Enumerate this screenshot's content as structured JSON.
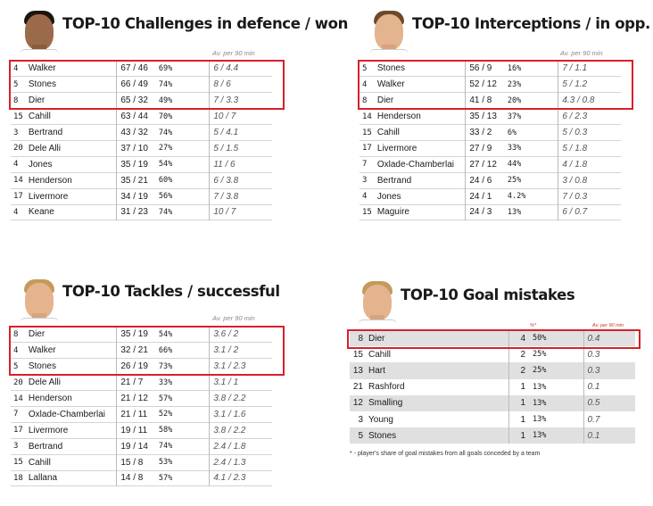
{
  "defence": {
    "title": "TOP-10 Challenges in defence / won",
    "subheader": "Av. per 90 min",
    "rows": [
      {
        "num": "4",
        "name": "Walker",
        "won": "67 / 46",
        "pct": "69%",
        "avg": "6 / 4.4"
      },
      {
        "num": "5",
        "name": "Stones",
        "won": "66 / 49",
        "pct": "74%",
        "avg": "8 / 6"
      },
      {
        "num": "8",
        "name": "Dier",
        "won": "65 / 32",
        "pct": "49%",
        "avg": "7 / 3.3"
      },
      {
        "num": "15",
        "name": "Cahill",
        "won": "63 / 44",
        "pct": "70%",
        "avg": "10 / 7"
      },
      {
        "num": "3",
        "name": "Bertrand",
        "won": "43 / 32",
        "pct": "74%",
        "avg": "5 / 4.1"
      },
      {
        "num": "20",
        "name": "Dele Alli",
        "won": "37 / 10",
        "pct": "27%",
        "avg": "5 / 1.5"
      },
      {
        "num": "4",
        "name": "Jones",
        "won": "35 / 19",
        "pct": "54%",
        "avg": "11 / 6"
      },
      {
        "num": "14",
        "name": "Henderson",
        "won": "35 / 21",
        "pct": "60%",
        "avg": "6 / 3.8"
      },
      {
        "num": "17",
        "name": "Livermore",
        "won": "34 / 19",
        "pct": "56%",
        "avg": "7 / 3.8"
      },
      {
        "num": "4",
        "name": "Keane",
        "won": "31 / 23",
        "pct": "74%",
        "avg": "10 / 7"
      }
    ]
  },
  "interceptions": {
    "title": "TOP-10 Interceptions / in opp. half",
    "subheader": "Av. per 90 min",
    "rows": [
      {
        "num": "5",
        "name": "Stones",
        "won": "56 / 9",
        "pct": "16%",
        "avg": "7 / 1.1"
      },
      {
        "num": "4",
        "name": "Walker",
        "won": "52 / 12",
        "pct": "23%",
        "avg": "5 / 1.2"
      },
      {
        "num": "8",
        "name": "Dier",
        "won": "41 / 8",
        "pct": "20%",
        "avg": "4.3 / 0.8"
      },
      {
        "num": "14",
        "name": "Henderson",
        "won": "35 / 13",
        "pct": "37%",
        "avg": "6 / 2.3"
      },
      {
        "num": "15",
        "name": "Cahill",
        "won": "33 / 2",
        "pct": "6%",
        "avg": "5 / 0.3"
      },
      {
        "num": "17",
        "name": "Livermore",
        "won": "27 / 9",
        "pct": "33%",
        "avg": "5 / 1.8"
      },
      {
        "num": "7",
        "name": "Oxlade-Chamberlai",
        "won": "27 / 12",
        "pct": "44%",
        "avg": "4 / 1.8"
      },
      {
        "num": "3",
        "name": "Bertrand",
        "won": "24 / 6",
        "pct": "25%",
        "avg": "3 / 0.8"
      },
      {
        "num": "4",
        "name": "Jones",
        "won": "24 / 1",
        "pct": "4.2%",
        "avg": "7 / 0.3"
      },
      {
        "num": "15",
        "name": "Maguire",
        "won": "24 / 3",
        "pct": "13%",
        "avg": "6 / 0.7"
      }
    ]
  },
  "tackles": {
    "title": "TOP-10 Tackles / successful",
    "subheader": "Av. per 90 min",
    "rows": [
      {
        "num": "8",
        "name": "Dier",
        "won": "35 / 19",
        "pct": "54%",
        "avg": "3.6 / 2"
      },
      {
        "num": "4",
        "name": "Walker",
        "won": "32 / 21",
        "pct": "66%",
        "avg": "3.1 / 2"
      },
      {
        "num": "5",
        "name": "Stones",
        "won": "26 / 19",
        "pct": "73%",
        "avg": "3.1 / 2.3"
      },
      {
        "num": "20",
        "name": "Dele Alli",
        "won": "21 / 7",
        "pct": "33%",
        "avg": "3.1 / 1"
      },
      {
        "num": "14",
        "name": "Henderson",
        "won": "21 / 12",
        "pct": "57%",
        "avg": "3.8 / 2.2"
      },
      {
        "num": "7",
        "name": "Oxlade-Chamberlai",
        "won": "21 / 11",
        "pct": "52%",
        "avg": "3.1 / 1.6"
      },
      {
        "num": "17",
        "name": "Livermore",
        "won": "19 / 11",
        "pct": "58%",
        "avg": "3.8 / 2.2"
      },
      {
        "num": "3",
        "name": "Bertrand",
        "won": "19 / 14",
        "pct": "74%",
        "avg": "2.4 / 1.8"
      },
      {
        "num": "15",
        "name": "Cahill",
        "won": "15 / 8",
        "pct": "53%",
        "avg": "2.4 / 1.3"
      },
      {
        "num": "18",
        "name": "Lallana",
        "won": "14 / 8",
        "pct": "57%",
        "avg": "4.1 / 2.3"
      }
    ]
  },
  "mistakes": {
    "title": "TOP-10 Goal mistakes",
    "pct_header": "%*",
    "avg_header": "Av. per 90 min",
    "rows": [
      {
        "num": "8",
        "name": "Dier",
        "cnt": "4",
        "pct": "50%",
        "avg": "0.4"
      },
      {
        "num": "15",
        "name": "Cahill",
        "cnt": "2",
        "pct": "25%",
        "avg": "0.3"
      },
      {
        "num": "13",
        "name": "Hart",
        "cnt": "2",
        "pct": "25%",
        "avg": "0.3"
      },
      {
        "num": "21",
        "name": "Rashford",
        "cnt": "1",
        "pct": "13%",
        "avg": "0.1"
      },
      {
        "num": "12",
        "name": "Smalling",
        "cnt": "1",
        "pct": "13%",
        "avg": "0.5"
      },
      {
        "num": "3",
        "name": "Young",
        "cnt": "1",
        "pct": "13%",
        "avg": "0.7"
      },
      {
        "num": "5",
        "name": "Stones",
        "cnt": "1",
        "pct": "13%",
        "avg": "0.1"
      }
    ],
    "footnote": "* - player's share of goal mistakes from all goals conceded by a team"
  },
  "colors": {
    "highlight": "#d8202a",
    "stripe": "#e0e0e0"
  }
}
